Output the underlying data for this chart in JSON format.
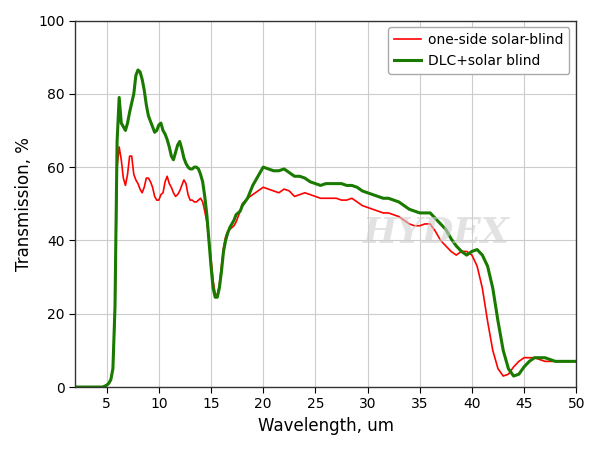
{
  "title": "",
  "xlabel": "Wavelength, um",
  "ylabel": "Transmission, %",
  "xlim": [
    2,
    50
  ],
  "ylim": [
    0,
    100
  ],
  "xticks": [
    5,
    10,
    15,
    20,
    25,
    30,
    35,
    40,
    45,
    50
  ],
  "yticks": [
    0,
    20,
    40,
    60,
    80,
    100
  ],
  "background_color": "#ffffff",
  "grid_color": "#cccccc",
  "legend_labels": [
    "one-side solar-blind",
    "DLC+solar blind"
  ],
  "red_color": "#ff0000",
  "green_color": "#1a7a00",
  "red_linewidth": 1.2,
  "green_linewidth": 2.2,
  "watermark_text": "HYDEX",
  "watermark_color": "#d0d0d0",
  "red_x": [
    2.0,
    3.0,
    3.5,
    4.0,
    4.3,
    4.5,
    4.6,
    4.8,
    5.0,
    5.2,
    5.4,
    5.6,
    5.8,
    6.0,
    6.2,
    6.4,
    6.6,
    6.8,
    7.0,
    7.2,
    7.4,
    7.6,
    7.8,
    8.0,
    8.2,
    8.4,
    8.6,
    8.8,
    9.0,
    9.2,
    9.4,
    9.6,
    9.8,
    10.0,
    10.2,
    10.4,
    10.6,
    10.8,
    11.0,
    11.2,
    11.4,
    11.6,
    11.8,
    12.0,
    12.2,
    12.4,
    12.6,
    12.8,
    13.0,
    13.2,
    13.4,
    13.6,
    13.8,
    14.0,
    14.2,
    14.4,
    14.6,
    14.8,
    15.0,
    15.2,
    15.4,
    15.6,
    15.8,
    16.0,
    16.2,
    16.4,
    16.6,
    16.8,
    17.0,
    17.2,
    17.4,
    17.6,
    17.8,
    18.0,
    18.5,
    19.0,
    19.5,
    20.0,
    20.5,
    21.0,
    21.5,
    22.0,
    22.5,
    23.0,
    23.5,
    24.0,
    24.5,
    25.0,
    25.5,
    26.0,
    26.5,
    27.0,
    27.5,
    28.0,
    28.5,
    29.0,
    29.5,
    30.0,
    30.5,
    31.0,
    31.5,
    32.0,
    32.5,
    33.0,
    33.5,
    34.0,
    34.5,
    35.0,
    35.5,
    36.0,
    36.5,
    37.0,
    37.5,
    38.0,
    38.5,
    39.0,
    39.5,
    40.0,
    40.5,
    41.0,
    41.5,
    42.0,
    42.5,
    43.0,
    43.5,
    44.0,
    44.5,
    45.0,
    45.5,
    46.0,
    46.5,
    47.0,
    47.5,
    48.0,
    48.5,
    49.0,
    49.5,
    50.0
  ],
  "red_y": [
    0.0,
    0.0,
    0.0,
    0.0,
    0.0,
    0.0,
    0.0,
    0.2,
    0.5,
    1.0,
    2.0,
    5.0,
    20.0,
    60.0,
    65.5,
    62.0,
    57.0,
    55.0,
    58.0,
    63.0,
    63.0,
    58.0,
    56.5,
    55.5,
    54.0,
    53.0,
    54.5,
    57.0,
    57.0,
    56.0,
    54.5,
    52.0,
    51.0,
    51.0,
    52.5,
    53.0,
    56.0,
    57.5,
    55.5,
    54.5,
    53.0,
    52.0,
    52.5,
    53.5,
    55.0,
    56.5,
    55.5,
    52.5,
    51.0,
    51.0,
    50.5,
    50.5,
    51.0,
    51.5,
    50.5,
    48.0,
    45.0,
    40.0,
    35.0,
    29.0,
    25.5,
    25.0,
    28.0,
    33.0,
    38.0,
    41.0,
    42.5,
    43.0,
    43.5,
    44.0,
    45.0,
    46.5,
    48.0,
    50.0,
    51.5,
    52.5,
    53.5,
    54.5,
    54.0,
    53.5,
    53.0,
    54.0,
    53.5,
    52.0,
    52.5,
    53.0,
    52.5,
    52.0,
    51.5,
    51.5,
    51.5,
    51.5,
    51.0,
    51.0,
    51.5,
    50.5,
    49.5,
    49.0,
    48.5,
    48.0,
    47.5,
    47.5,
    47.0,
    46.5,
    45.5,
    44.5,
    44.0,
    44.0,
    44.5,
    44.5,
    42.5,
    40.0,
    38.5,
    37.0,
    36.0,
    37.0,
    37.0,
    36.0,
    33.0,
    27.0,
    18.0,
    10.0,
    5.0,
    3.0,
    3.5,
    5.5,
    7.0,
    8.0,
    8.0,
    8.0,
    7.5,
    7.0,
    7.0,
    7.0,
    7.0,
    7.0,
    7.0,
    7.0
  ],
  "green_x": [
    2.0,
    3.0,
    3.5,
    4.0,
    4.3,
    4.5,
    4.6,
    4.8,
    5.0,
    5.2,
    5.4,
    5.6,
    5.8,
    6.0,
    6.2,
    6.4,
    6.6,
    6.8,
    7.0,
    7.2,
    7.4,
    7.6,
    7.8,
    8.0,
    8.2,
    8.4,
    8.6,
    8.8,
    9.0,
    9.2,
    9.4,
    9.6,
    9.8,
    10.0,
    10.2,
    10.4,
    10.6,
    10.8,
    11.0,
    11.2,
    11.4,
    11.6,
    11.8,
    12.0,
    12.2,
    12.4,
    12.6,
    12.8,
    13.0,
    13.2,
    13.4,
    13.6,
    13.8,
    14.0,
    14.2,
    14.4,
    14.6,
    14.8,
    15.0,
    15.2,
    15.4,
    15.6,
    15.8,
    16.0,
    16.2,
    16.4,
    16.6,
    16.8,
    17.0,
    17.2,
    17.4,
    17.6,
    17.8,
    18.0,
    18.5,
    19.0,
    19.5,
    20.0,
    20.5,
    21.0,
    21.5,
    22.0,
    22.5,
    23.0,
    23.5,
    24.0,
    24.5,
    25.0,
    25.5,
    26.0,
    26.5,
    27.0,
    27.5,
    28.0,
    28.5,
    29.0,
    29.5,
    30.0,
    30.5,
    31.0,
    31.5,
    32.0,
    32.5,
    33.0,
    33.5,
    34.0,
    34.5,
    35.0,
    35.5,
    36.0,
    36.5,
    37.0,
    37.5,
    38.0,
    38.5,
    39.0,
    39.5,
    40.0,
    40.5,
    41.0,
    41.5,
    42.0,
    42.5,
    43.0,
    43.5,
    44.0,
    44.5,
    45.0,
    45.5,
    46.0,
    46.5,
    47.0,
    47.5,
    48.0,
    48.5,
    49.0,
    49.5,
    50.0
  ],
  "green_y": [
    0.0,
    0.0,
    0.0,
    0.0,
    0.0,
    0.0,
    0.0,
    0.2,
    0.5,
    1.0,
    2.0,
    5.0,
    22.0,
    67.0,
    79.0,
    72.0,
    71.0,
    70.0,
    72.0,
    75.0,
    77.5,
    80.0,
    85.0,
    86.5,
    86.0,
    84.0,
    81.0,
    77.0,
    74.0,
    72.5,
    71.0,
    69.5,
    70.0,
    71.5,
    72.0,
    70.0,
    69.0,
    67.5,
    65.5,
    63.0,
    62.0,
    64.0,
    66.0,
    67.0,
    65.0,
    62.5,
    61.0,
    60.0,
    59.5,
    59.5,
    60.0,
    60.0,
    59.5,
    58.0,
    56.0,
    52.0,
    47.0,
    40.0,
    33.0,
    27.0,
    24.5,
    24.5,
    27.0,
    31.5,
    37.0,
    40.0,
    42.0,
    43.5,
    44.5,
    45.5,
    47.0,
    47.5,
    48.0,
    49.5,
    51.5,
    55.0,
    57.5,
    60.0,
    59.5,
    59.0,
    59.0,
    59.5,
    58.5,
    57.5,
    57.5,
    57.0,
    56.0,
    55.5,
    55.0,
    55.5,
    55.5,
    55.5,
    55.5,
    55.0,
    55.0,
    54.5,
    53.5,
    53.0,
    52.5,
    52.0,
    51.5,
    51.5,
    51.0,
    50.5,
    49.5,
    48.5,
    48.0,
    47.5,
    47.5,
    47.5,
    46.0,
    44.5,
    43.0,
    40.5,
    38.5,
    37.0,
    36.0,
    37.0,
    37.5,
    36.0,
    33.0,
    27.0,
    18.0,
    10.0,
    5.0,
    3.0,
    3.5,
    5.5,
    7.0,
    8.0,
    8.0,
    8.0,
    7.5,
    7.0,
    7.0,
    7.0,
    7.0,
    7.0
  ]
}
